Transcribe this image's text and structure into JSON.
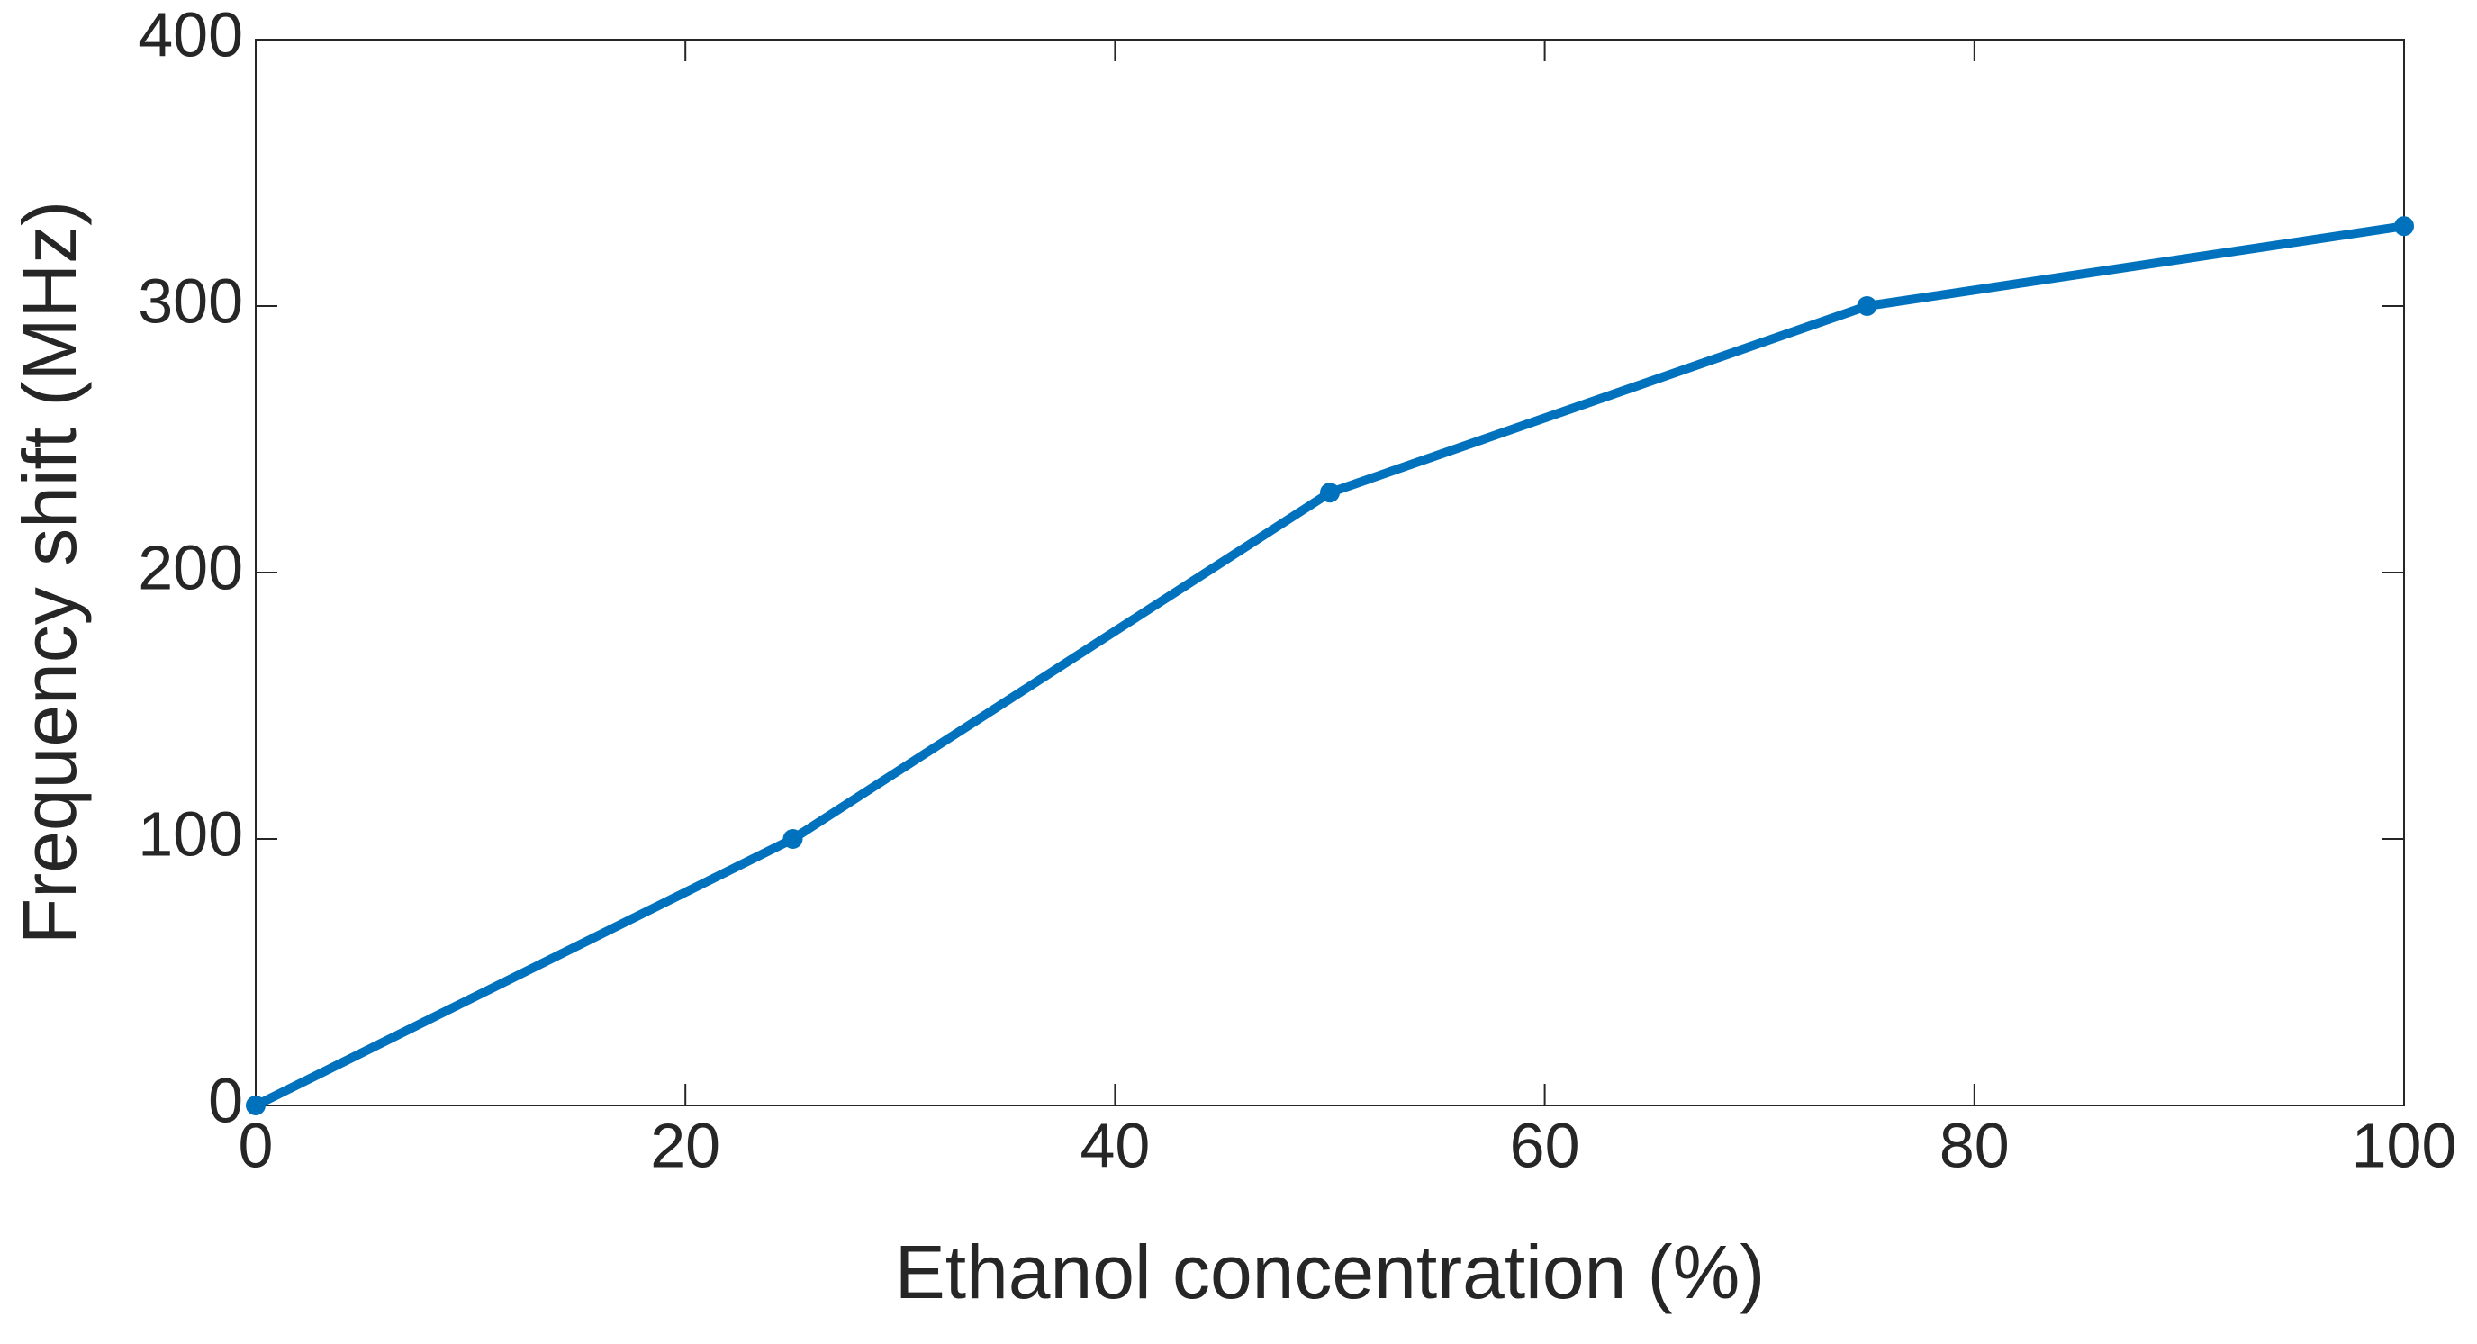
{
  "chart_data": {
    "type": "line",
    "x_label": "Ethanol concentration (%)",
    "y_label": "Frequency shift (MHz)",
    "x": [
      0,
      25,
      50,
      75,
      100
    ],
    "series": [
      {
        "color": "#0072bd",
        "values": [
          0,
          100,
          230,
          300,
          330
        ]
      }
    ],
    "xlim": [
      0,
      100
    ],
    "xticks": [
      0,
      20,
      40,
      60,
      80,
      100
    ],
    "ylim": [
      0,
      400
    ],
    "yticks": [
      0,
      100,
      200,
      300,
      400
    ],
    "markers": true,
    "box": true
  }
}
